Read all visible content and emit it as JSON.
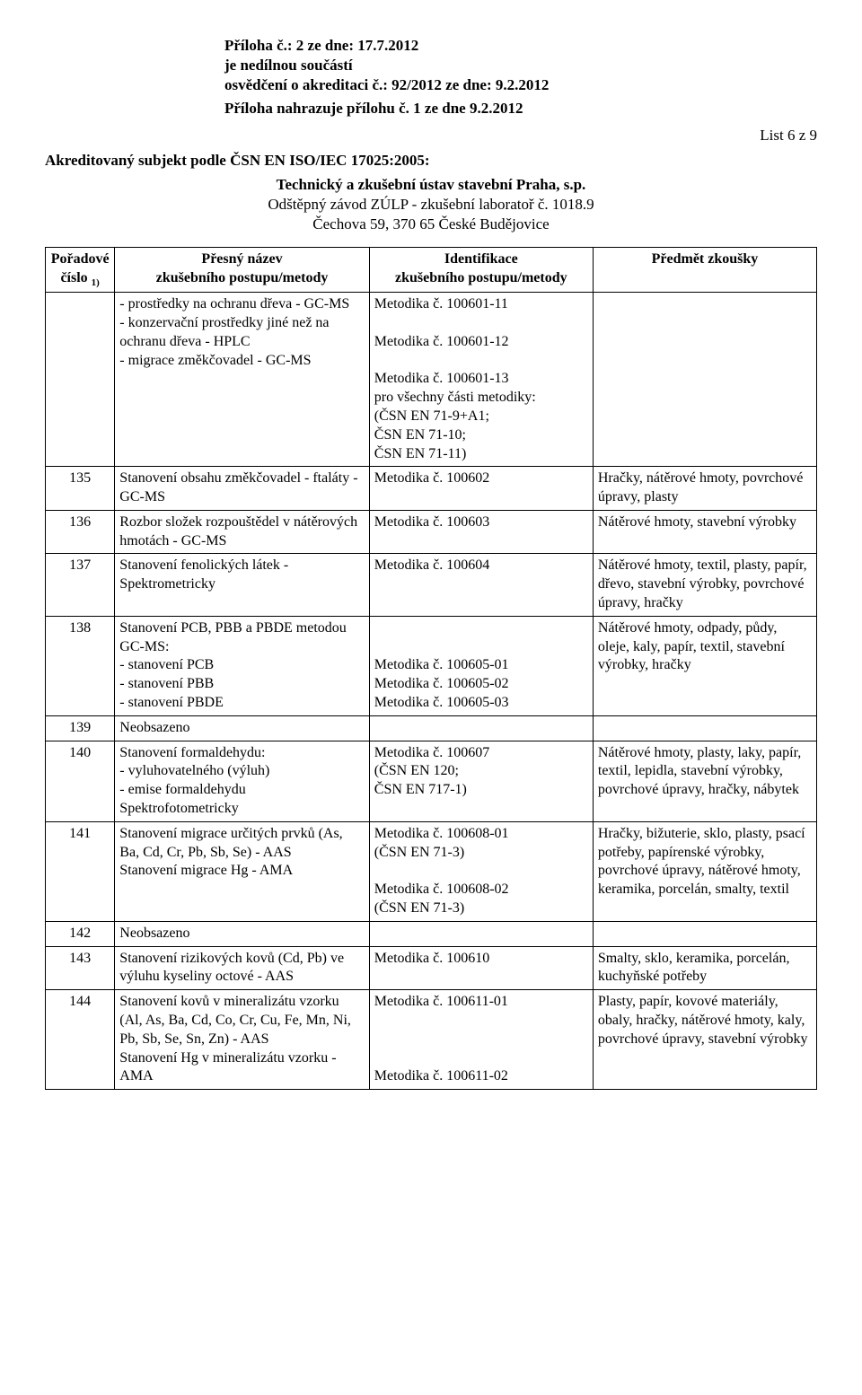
{
  "header": {
    "line1": "Příloha č.: 2 ze dne: 17.7.2012",
    "line2": "je nedílnou součástí",
    "line3": "osvědčení o akreditaci č.: 92/2012  ze dne: 9.2.2012",
    "line4": "Příloha nahrazuje přílohu č. 1 ze dne 9.2.2012"
  },
  "page_num": "List 6 z 9",
  "subject": "Akreditovaný subjekt podle ČSN EN ISO/IEC 17025:2005:",
  "center": {
    "l1": "Technický a zkušební ústav stavební Praha, s.p.",
    "l2": "Odštěpný závod ZÚLP - zkušební laboratoř č. 1018.9",
    "l3": "Čechova 59, 370 65  České Budějovice"
  },
  "thead": {
    "c1a": "Pořadové",
    "c1b": "číslo ",
    "c1sup": "1)",
    "c2a": "Přesný název",
    "c2b": "zkušebního postupu/metody",
    "c3a": "Identifikace",
    "c3b": "zkušebního postupu/metody",
    "c4": "Předmět zkoušky"
  },
  "rows": [
    {
      "num": "",
      "name": "- prostředky na ochranu dřeva - GC-MS\n- konzervační prostředky jiné než na ochranu dřeva - HPLC\n- migrace změkčovadel - GC-MS",
      "ident": "Metodika č. 100601-11\n\nMetodika č. 100601-12\n\nMetodika č. 100601-13\npro všechny části metodiky:\n(ČSN EN 71-9+A1;\nČSN EN 71-10;\nČSN EN 71-11)",
      "subj": ""
    },
    {
      "num": "135",
      "name": "Stanovení obsahu změkčovadel - ftaláty - GC-MS",
      "ident": "Metodika č. 100602",
      "subj": "Hračky, nátěrové hmoty, povrchové úpravy, plasty"
    },
    {
      "num": "136",
      "name": "Rozbor složek rozpouštědel v nátěrových hmotách - GC-MS",
      "ident": "Metodika č. 100603",
      "subj": "Nátěrové hmoty, stavební výrobky"
    },
    {
      "num": "137",
      "name": "Stanovení fenolických látek - Spektrometricky",
      "ident": "Metodika č. 100604",
      "subj": "Nátěrové hmoty, textil, plasty, papír, dřevo, stavební výrobky, povrchové úpravy, hračky"
    },
    {
      "num": "138",
      "name": "Stanovení PCB, PBB a PBDE metodou GC-MS:\n- stanovení PCB\n- stanovení PBB\n- stanovení PBDE",
      "ident": "\n\nMetodika č. 100605-01\nMetodika č. 100605-02\nMetodika č. 100605-03",
      "subj": "Nátěrové hmoty, odpady, půdy, oleje, kaly, papír, textil, stavební výrobky, hračky"
    },
    {
      "num": "139",
      "name": "Neobsazeno",
      "ident": "",
      "subj": ""
    },
    {
      "num": "140",
      "name": "Stanovení formaldehydu:\n- vyluhovatelného (výluh)\n- emise formaldehydu\nSpektrofotometricky",
      "ident": "Metodika č. 100607\n(ČSN EN 120;\nČSN EN 717-1)",
      "subj": "Nátěrové hmoty, plasty, laky, papír, textil, lepidla, stavební výrobky, povrchové úpravy, hračky, nábytek"
    },
    {
      "num": "141",
      "name": "Stanovení migrace určitých prvků (As, Ba, Cd, Cr, Pb, Sb, Se) - AAS\nStanovení migrace Hg - AMA",
      "ident": "Metodika č. 100608-01\n(ČSN EN 71-3)\n\nMetodika č. 100608-02\n(ČSN EN 71-3)",
      "subj": "Hračky, bižuterie, sklo, plasty, psací potřeby, papírenské výrobky, povrchové úpravy, nátěrové hmoty, keramika, porcelán, smalty, textil"
    },
    {
      "num": "142",
      "name": "Neobsazeno",
      "ident": "",
      "subj": ""
    },
    {
      "num": "143",
      "name": "Stanovení rizikových kovů (Cd, Pb) ve výluhu kyseliny octové - AAS",
      "ident": "Metodika č. 100610",
      "subj": "Smalty, sklo, keramika, porcelán, kuchyňské potřeby"
    },
    {
      "num": "144",
      "name": "Stanovení kovů v mineralizátu vzorku (Al, As, Ba, Cd, Co, Cr, Cu, Fe, Mn, Ni, Pb, Sb, Se, Sn, Zn) - AAS\nStanovení Hg v mineralizátu vzorku - AMA",
      "ident": "Metodika č. 100611-01\n\n\n\nMetodika č. 100611-02",
      "subj": "Plasty, papír, kovové materiály, obaly, hračky, nátěrové hmoty, kaly, povrchové úpravy, stavební výrobky"
    }
  ]
}
